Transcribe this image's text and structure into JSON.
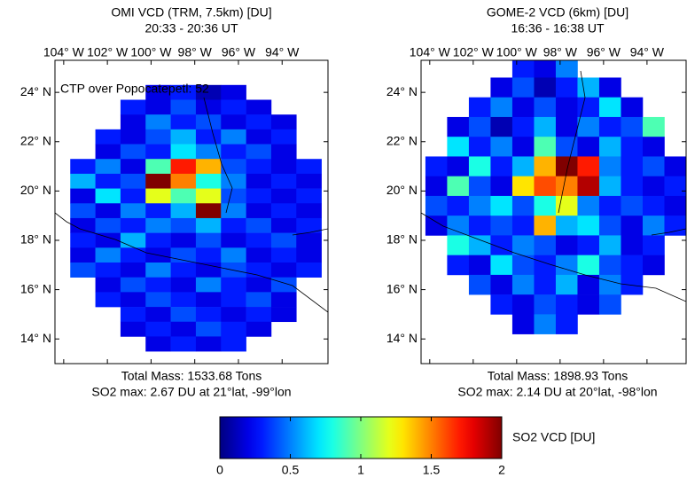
{
  "chart_data": [
    {
      "type": "map",
      "title": "OMI VCD (TRM, 7.5km) [DU]",
      "subtitle": "20:33 - 20:36 UT",
      "annotation": "CTP over Popocatepetl: 52",
      "total_mass": "Total Mass: 1533.68 Tons",
      "so2_max": "SO2 max: 2.67 DU at 21°lat, -99°lon",
      "xlim": [
        -104.4,
        -91.9
      ],
      "ylim": [
        13.0,
        25.3
      ],
      "xticks": [
        {
          "value": -104,
          "label": "104° W"
        },
        {
          "value": -102,
          "label": "102° W"
        },
        {
          "value": -100,
          "label": "100° W"
        },
        {
          "value": -98,
          "label": "98° W"
        },
        {
          "value": -96,
          "label": "96° W"
        },
        {
          "value": -94,
          "label": "94° W"
        }
      ],
      "yticks": [
        {
          "value": 24,
          "label": "24° N"
        },
        {
          "value": 22,
          "label": "22° N"
        },
        {
          "value": 20,
          "label": "20° N"
        },
        {
          "value": 18,
          "label": "18° N"
        },
        {
          "value": 16,
          "label": "16° N"
        },
        {
          "value": 14,
          "label": "14° N"
        }
      ],
      "lon_edges": [
        -103.7,
        -102.55,
        -101.4,
        -100.25,
        -99.1,
        -97.95,
        -96.8,
        -95.65,
        -94.5,
        -93.35,
        -92.2
      ],
      "lat_edges": [
        24.3,
        23.7,
        23.1,
        22.5,
        21.9,
        21.3,
        20.7,
        20.1,
        19.5,
        18.9,
        18.3,
        17.7,
        17.1,
        16.5,
        15.9,
        15.3,
        14.7,
        14.1,
        13.5
      ],
      "values": [
        [
          null,
          null,
          null,
          0.2,
          0.3,
          0.1,
          0.2,
          null,
          null,
          null
        ],
        [
          null,
          null,
          0.3,
          0.2,
          0.4,
          0.2,
          0.3,
          0.2,
          null,
          null
        ],
        [
          null,
          null,
          0.2,
          0.5,
          0.3,
          0.4,
          0.2,
          0.3,
          0.2,
          null
        ],
        [
          null,
          0.3,
          0.2,
          0.4,
          0.6,
          0.3,
          0.5,
          0.2,
          0.3,
          null
        ],
        [
          null,
          0.2,
          0.4,
          0.3,
          0.7,
          0.5,
          0.3,
          0.4,
          0.2,
          null
        ],
        [
          0.3,
          0.5,
          0.2,
          0.9,
          1.7,
          1.4,
          0.4,
          0.3,
          0.2,
          0.3
        ],
        [
          0.6,
          0.3,
          0.4,
          2.67,
          1.5,
          0.8,
          0.5,
          0.2,
          0.3,
          0.2
        ],
        [
          0.2,
          0.7,
          0.3,
          1.2,
          0.9,
          1.2,
          0.4,
          0.3,
          0.2,
          0.3
        ],
        [
          0.4,
          0.2,
          0.5,
          0.3,
          0.6,
          2.2,
          0.5,
          0.2,
          0.3,
          0.2
        ],
        [
          0.2,
          0.4,
          0.3,
          0.5,
          0.4,
          0.6,
          0.3,
          0.4,
          0.2,
          0.3
        ],
        [
          0.3,
          0.2,
          0.6,
          0.3,
          0.2,
          0.4,
          0.2,
          0.3,
          0.4,
          0.2
        ],
        [
          0.2,
          0.5,
          0.3,
          0.2,
          0.4,
          0.3,
          0.5,
          0.2,
          0.3,
          0.2
        ],
        [
          0.4,
          0.3,
          0.2,
          0.5,
          0.3,
          0.2,
          0.4,
          0.3,
          0.2,
          0.3
        ],
        [
          null,
          0.2,
          0.4,
          0.3,
          0.2,
          0.5,
          0.3,
          0.2,
          0.4,
          null
        ],
        [
          null,
          0.3,
          0.2,
          0.4,
          0.3,
          0.2,
          0.3,
          0.4,
          0.2,
          null
        ],
        [
          null,
          null,
          0.3,
          0.2,
          0.4,
          0.3,
          0.2,
          0.3,
          0.2,
          null
        ],
        [
          null,
          null,
          0.2,
          0.3,
          0.2,
          0.4,
          0.3,
          0.2,
          null,
          null
        ],
        [
          null,
          null,
          null,
          0.2,
          0.3,
          0.2,
          0.3,
          null,
          null,
          null
        ]
      ]
    },
    {
      "type": "map",
      "title": "GOME-2 VCD (6km) [DU]",
      "subtitle": "16:36 - 16:38 UT",
      "total_mass": "Total Mass: 1898.93 Tons",
      "so2_max": "SO2 max: 2.14 DU at 20°lat, -98°lon",
      "xlim": [
        -104.4,
        -92.2
      ],
      "ylim": [
        13.0,
        25.3
      ],
      "xticks": [
        {
          "value": -104,
          "label": "104° W"
        },
        {
          "value": -102,
          "label": "102° W"
        },
        {
          "value": -100,
          "label": "100° W"
        },
        {
          "value": -98,
          "label": "98° W"
        },
        {
          "value": -96,
          "label": "96° W"
        },
        {
          "value": -94,
          "label": "94° W"
        }
      ],
      "yticks": [
        {
          "value": 24,
          "label": "24° N"
        },
        {
          "value": 22,
          "label": "22° N"
        },
        {
          "value": 20,
          "label": "20° N"
        },
        {
          "value": 18,
          "label": "18° N"
        },
        {
          "value": 16,
          "label": "16° N"
        },
        {
          "value": 14,
          "label": "14° N"
        }
      ],
      "lon_edges": [
        -104.2,
        -103.2,
        -102.2,
        -101.2,
        -100.2,
        -99.2,
        -98.2,
        -97.2,
        -96.2,
        -95.2,
        -94.2,
        -93.2,
        -92.2
      ],
      "lat_edges": [
        25.4,
        24.6,
        23.8,
        23.0,
        22.2,
        21.4,
        20.6,
        19.8,
        19.0,
        18.2,
        17.4,
        16.6,
        15.8,
        15.0,
        14.2
      ],
      "values": [
        [
          null,
          null,
          null,
          null,
          0.3,
          0.2,
          0.5,
          null,
          null,
          null,
          null,
          null
        ],
        [
          null,
          null,
          null,
          0.2,
          0.4,
          0.1,
          0.3,
          0.6,
          0.2,
          null,
          null,
          null
        ],
        [
          null,
          null,
          0.3,
          0.5,
          0.2,
          0.4,
          0.2,
          0.3,
          0.7,
          0.2,
          null,
          null
        ],
        [
          null,
          0.2,
          0.4,
          0.1,
          0.3,
          0.6,
          0.2,
          0.5,
          0.3,
          0.4,
          0.9,
          null
        ],
        [
          null,
          0.7,
          0.3,
          0.5,
          0.2,
          0.9,
          0.4,
          0.2,
          0.6,
          0.3,
          0.2,
          null
        ],
        [
          0.3,
          0.2,
          0.8,
          0.3,
          0.6,
          1.4,
          2.14,
          1.7,
          0.5,
          0.3,
          0.4,
          0.2
        ],
        [
          0.2,
          0.9,
          0.4,
          0.2,
          1.3,
          1.6,
          1.5,
          1.9,
          0.6,
          0.3,
          0.2,
          0.3
        ],
        [
          0.4,
          0.3,
          0.5,
          0.7,
          0.4,
          0.8,
          1.2,
          0.5,
          0.3,
          0.4,
          0.3,
          0.2
        ],
        [
          0.2,
          0.5,
          0.3,
          0.4,
          0.3,
          1.4,
          0.6,
          0.7,
          0.4,
          0.2,
          0.5,
          0.3
        ],
        [
          null,
          0.8,
          0.6,
          0.3,
          0.5,
          0.4,
          0.2,
          0.3,
          0.6,
          0.2,
          0.3,
          null
        ],
        [
          null,
          0.3,
          0.2,
          0.7,
          0.4,
          0.3,
          0.5,
          0.8,
          0.4,
          0.3,
          0.2,
          null
        ],
        [
          null,
          null,
          0.4,
          0.2,
          0.5,
          0.3,
          0.6,
          0.2,
          0.5,
          0.3,
          null,
          null
        ],
        [
          null,
          null,
          null,
          0.3,
          0.2,
          0.4,
          0.3,
          0.2,
          0.4,
          null,
          null,
          null
        ],
        [
          null,
          null,
          null,
          null,
          0.2,
          0.5,
          0.3,
          null,
          null,
          null,
          null,
          null
        ]
      ]
    }
  ],
  "colorbar": {
    "label": "SO2 VCD [DU]",
    "lim": [
      0,
      2
    ],
    "ticks": [
      0,
      0.5,
      1,
      1.5,
      2
    ],
    "colormap": "jet"
  }
}
